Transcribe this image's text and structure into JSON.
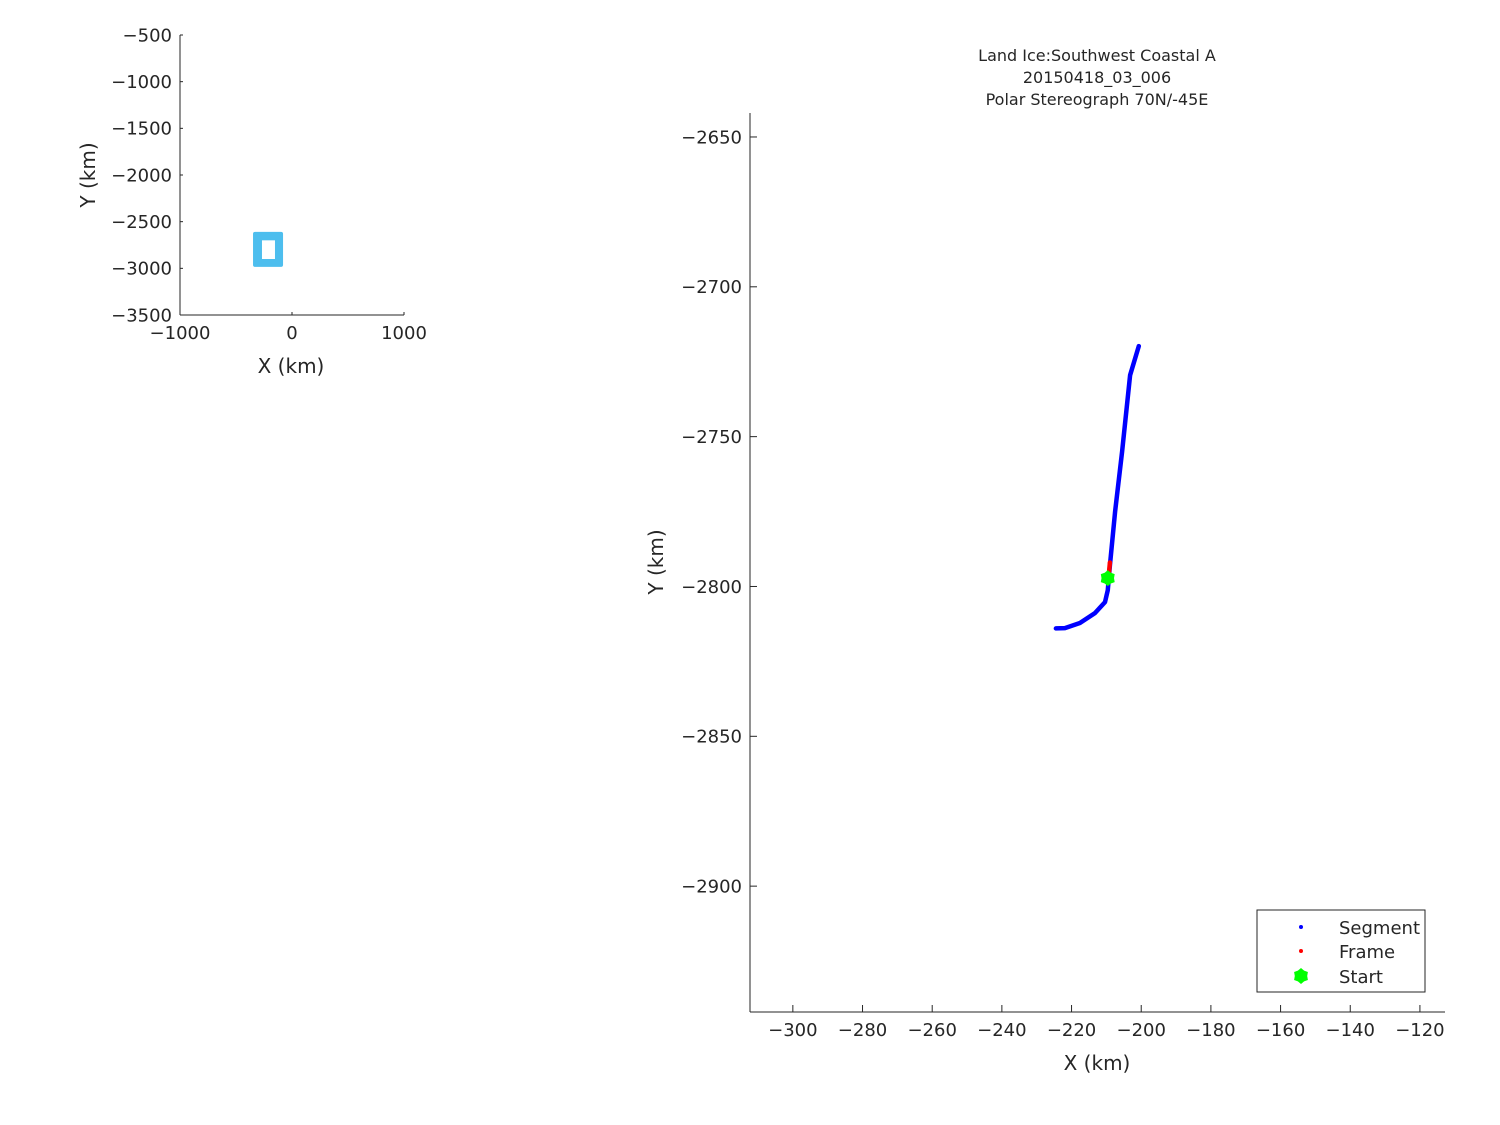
{
  "chart_data": [
    {
      "type": "line",
      "xlabel": "X (km)",
      "ylabel": "Y (km)",
      "xlim": [
        -1000,
        1000
      ],
      "ylim": [
        -3500,
        -500
      ],
      "xticks": [
        -1000,
        0,
        1000
      ],
      "yticks": [
        -500,
        -1000,
        -1500,
        -2000,
        -2500,
        -3000,
        -3500
      ],
      "grid": false,
      "box_outline": {
        "x": [
          -348,
          -80,
          -80,
          -348,
          -348
        ],
        "y": [
          -2610,
          -2610,
          -2985,
          -2985,
          -2610
        ]
      },
      "inner_blank": {
        "x": [
          -268,
          -152
        ],
        "y": [
          -2900,
          -2700
        ]
      },
      "color": "#4DBEEE"
    },
    {
      "type": "scatter",
      "title": [
        "Land Ice:Southwest Coastal A",
        "20150418_03_006",
        "Polar Stereograph 70N/-45E"
      ],
      "xlabel": "X (km)",
      "ylabel": "Y (km)",
      "xlim": [
        -312.3,
        -112.8
      ],
      "ylim": [
        -2942,
        -2642
      ],
      "xticks": [
        -300,
        -280,
        -260,
        -240,
        -220,
        -200,
        -180,
        -160,
        -140,
        -120
      ],
      "yticks": [
        -2650,
        -2700,
        -2750,
        -2800,
        -2850,
        -2900
      ],
      "grid": false,
      "legend_placement": "bottom-right",
      "series": [
        {
          "name": "Segment",
          "color": "#0000FF",
          "x": [
            -200.7,
            -203.2,
            -205.5,
            -207.5,
            -209.0,
            -209.6,
            -210.4,
            -213.3,
            -217.6,
            -221.9,
            -224.5
          ],
          "y": [
            -2719.8,
            -2729.5,
            -2755,
            -2775,
            -2793.0,
            -2801.2,
            -2805.2,
            -2808.9,
            -2812.2,
            -2813.9,
            -2814.0
          ]
        },
        {
          "name": "Frame",
          "color": "#FF0000",
          "x": [
            -209.0,
            -209.4
          ],
          "y": [
            -2792.0,
            -2797.2
          ]
        },
        {
          "name": "Start",
          "color": "#00FF00",
          "marker": "hexagram",
          "x": [
            -209.6
          ],
          "y": [
            -2797.2
          ]
        }
      ]
    }
  ]
}
